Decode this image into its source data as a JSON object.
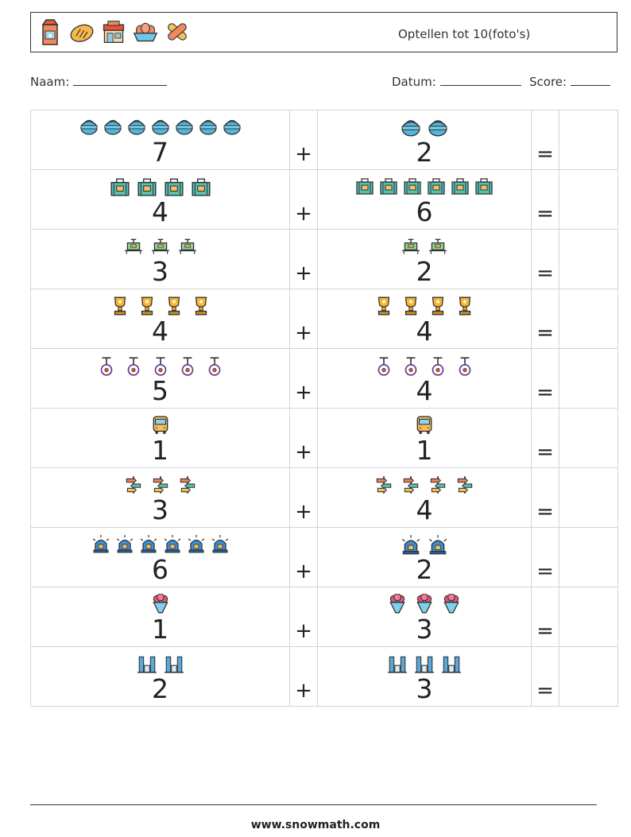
{
  "header": {
    "title": "Optellen tot 10(foto's)",
    "icons": [
      "juice-box-icon",
      "bread-icon",
      "shop-icon",
      "eggs-basket-icon",
      "bandage-icon"
    ]
  },
  "info": {
    "name_label": "Naam:",
    "date_label": "Datum:",
    "score_label": "Score:"
  },
  "operators": {
    "plus": "+",
    "equals": "="
  },
  "rows": [
    {
      "icon": "water-bucket-icon",
      "a": "7",
      "b": "2"
    },
    {
      "icon": "suitcase-icon",
      "a": "4",
      "b": "6"
    },
    {
      "icon": "garden-cart-icon",
      "a": "3",
      "b": "2"
    },
    {
      "icon": "trophy-icon",
      "a": "4",
      "b": "4"
    },
    {
      "icon": "unicycle-icon",
      "a": "5",
      "b": "4"
    },
    {
      "icon": "bus-icon",
      "a": "1",
      "b": "1"
    },
    {
      "icon": "signpost-icon",
      "a": "3",
      "b": "4"
    },
    {
      "icon": "siren-icon",
      "a": "6",
      "b": "2"
    },
    {
      "icon": "flower-bouquet-icon",
      "a": "1",
      "b": "3"
    },
    {
      "icon": "office-buildings-icon",
      "a": "2",
      "b": "3"
    }
  ],
  "footer": {
    "url": "www.snowmath.com"
  }
}
